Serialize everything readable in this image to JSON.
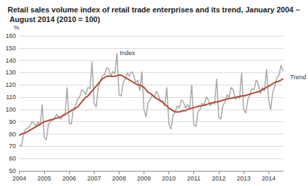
{
  "chart_data": {
    "type": "line",
    "title": "Retail sales volume index of retail trade enterprises and its trend, January 2004 – August 2014 (2010 = 100)",
    "y_label": "%",
    "categories": [
      "2004",
      null,
      null,
      null,
      null,
      null,
      null,
      null,
      null,
      null,
      null,
      null,
      "2005",
      null,
      null,
      null,
      null,
      null,
      null,
      null,
      null,
      null,
      null,
      null,
      "2006",
      null,
      null,
      null,
      null,
      null,
      null,
      null,
      null,
      null,
      null,
      null,
      "2007",
      null,
      null,
      null,
      null,
      null,
      null,
      null,
      null,
      null,
      null,
      null,
      "2008",
      null,
      null,
      null,
      null,
      null,
      null,
      null,
      null,
      null,
      null,
      null,
      "2009",
      null,
      null,
      null,
      null,
      null,
      null,
      null,
      null,
      null,
      null,
      null,
      "2010",
      null,
      null,
      null,
      null,
      null,
      null,
      null,
      null,
      null,
      null,
      null,
      "2011",
      null,
      null,
      null,
      null,
      null,
      null,
      null,
      null,
      null,
      null,
      null,
      "2012",
      null,
      null,
      null,
      null,
      null,
      null,
      null,
      null,
      null,
      null,
      null,
      "2013",
      null,
      null,
      null,
      null,
      null,
      null,
      null,
      null,
      null,
      null,
      null,
      "2014",
      null,
      null,
      null,
      null,
      null,
      null,
      null
    ],
    "series": [
      {
        "name": "Index",
        "color": "#a6a6a6",
        "values": [
          71,
          70,
          80,
          84,
          85,
          86,
          90,
          89,
          86,
          90,
          87,
          104,
          77,
          75,
          88,
          90,
          91,
          93,
          96,
          94,
          92,
          96,
          95,
          118,
          89,
          88,
          100,
          103,
          108,
          110,
          116,
          115,
          112,
          118,
          117,
          139,
          105,
          102,
          118,
          123,
          128,
          128,
          134,
          133,
          127,
          131,
          129,
          146,
          112,
          111,
          122,
          125,
          130,
          127,
          131,
          128,
          122,
          124,
          115,
          131,
          100,
          94,
          106,
          108,
          112,
          110,
          115,
          112,
          106,
          107,
          103,
          118,
          88,
          84,
          95,
          98,
          103,
          101,
          108,
          106,
          101,
          104,
          101,
          120,
          88,
          86,
          98,
          100,
          105,
          104,
          110,
          108,
          103,
          106,
          104,
          125,
          94,
          92,
          103,
          106,
          112,
          110,
          118,
          116,
          108,
          111,
          109,
          130,
          100,
          97,
          108,
          112,
          117,
          116,
          124,
          121,
          113,
          118,
          115,
          133,
          108,
          100,
          114,
          119,
          126,
          128,
          136,
          131
        ]
      },
      {
        "name": "Trend",
        "color": "#b5452b",
        "values": [
          79,
          80,
          80.5,
          81,
          82,
          83,
          84,
          85,
          86,
          87,
          88,
          89,
          90,
          90.5,
          91,
          91.5,
          92,
          92.5,
          93,
          93.5,
          94,
          95,
          96,
          97,
          98,
          99,
          100,
          101,
          102,
          104,
          106,
          108,
          110,
          111,
          113,
          115,
          117,
          119,
          121,
          123,
          125,
          126,
          127,
          127,
          127,
          127,
          127,
          127.5,
          128,
          128,
          127,
          126,
          125,
          124,
          123,
          122,
          121,
          120,
          120,
          119,
          118,
          116,
          114,
          113,
          112,
          110,
          109,
          108,
          107,
          106,
          104,
          103,
          101,
          100,
          99,
          98,
          98,
          98,
          98.5,
          99,
          99,
          100,
          100.5,
          101,
          101.5,
          102,
          102.5,
          103,
          103,
          103.5,
          104,
          104.5,
          105,
          105.5,
          106,
          106,
          106.5,
          107,
          107.5,
          108,
          108.5,
          109,
          109,
          109.5,
          110,
          110,
          110.5,
          111,
          111,
          111.5,
          112,
          112.5,
          113,
          113.5,
          114,
          114.5,
          115,
          116,
          117,
          118,
          119,
          120,
          121,
          122,
          122.5,
          123,
          124,
          125
        ]
      }
    ],
    "ylim": [
      50,
      160
    ],
    "yticks": [
      50,
      60,
      70,
      80,
      90,
      100,
      110,
      120,
      130,
      140,
      150,
      160
    ],
    "grid": true
  }
}
